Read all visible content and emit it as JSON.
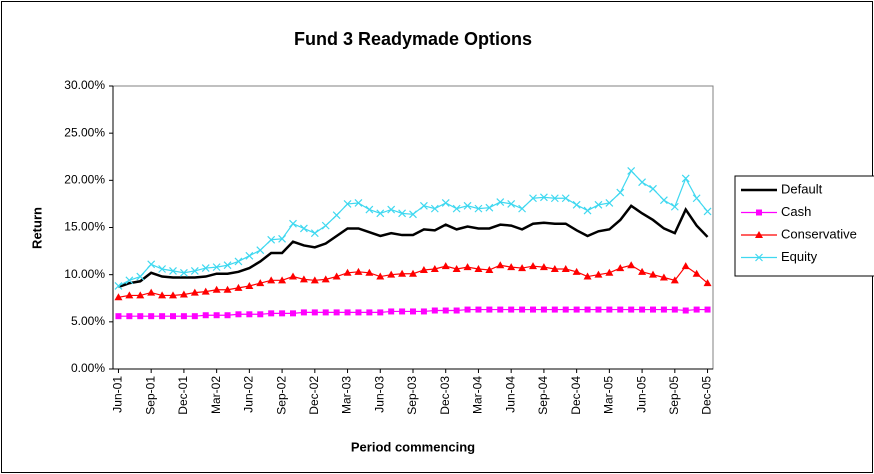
{
  "chart_data": {
    "type": "line",
    "title": "Fund 3 Readymade Options",
    "y_label": "Return",
    "x_label": "Period commencing",
    "categories": [
      "Jun-01",
      null,
      null,
      "Sep-01",
      null,
      null,
      "Dec-01",
      null,
      null,
      "Mar-02",
      null,
      null,
      "Jun-02",
      null,
      null,
      "Sep-02",
      null,
      null,
      "Dec-02",
      null,
      null,
      "Mar-03",
      null,
      null,
      "Jun-03",
      null,
      null,
      "Sep-03",
      null,
      null,
      "Dec-03",
      null,
      null,
      "Mar-04",
      null,
      null,
      "Jun-04",
      null,
      null,
      "Sep-04",
      null,
      null,
      "Dec-04",
      null,
      null,
      "Mar-05",
      null,
      null,
      "Jun-05",
      null,
      null,
      "Sep-05",
      null,
      null,
      "Dec-05"
    ],
    "series": [
      {
        "name": "Default",
        "color": "#000000",
        "marker": "none",
        "values": [
          8.7,
          9.1,
          9.3,
          10.2,
          9.8,
          9.7,
          9.7,
          9.7,
          9.8,
          10.1,
          10.1,
          10.3,
          10.7,
          11.4,
          12.3,
          12.3,
          13.5,
          13.1,
          12.9,
          13.3,
          14.1,
          14.9,
          14.9,
          14.5,
          14.1,
          14.4,
          14.2,
          14.2,
          14.8,
          14.7,
          15.3,
          14.8,
          15.1,
          14.9,
          14.9,
          15.3,
          15.2,
          14.8,
          15.4,
          15.5,
          15.4,
          15.4,
          14.7,
          14.1,
          14.6,
          14.8,
          15.8,
          17.3,
          16.5,
          15.8,
          14.9,
          14.4,
          16.9,
          15.2,
          14.0
        ]
      },
      {
        "name": "Cash",
        "color": "#ff00ff",
        "marker": "square",
        "values": [
          5.6,
          5.6,
          5.6,
          5.6,
          5.6,
          5.6,
          5.6,
          5.6,
          5.7,
          5.7,
          5.7,
          5.8,
          5.8,
          5.8,
          5.9,
          5.9,
          5.9,
          6.0,
          6.0,
          6.0,
          6.0,
          6.0,
          6.0,
          6.0,
          6.0,
          6.1,
          6.1,
          6.1,
          6.1,
          6.2,
          6.2,
          6.2,
          6.3,
          6.3,
          6.3,
          6.3,
          6.3,
          6.3,
          6.3,
          6.3,
          6.3,
          6.3,
          6.3,
          6.3,
          6.3,
          6.3,
          6.3,
          6.3,
          6.3,
          6.3,
          6.3,
          6.3,
          6.2,
          6.3,
          6.3
        ]
      },
      {
        "name": "Conservative",
        "color": "#ff0000",
        "marker": "triangle",
        "values": [
          7.6,
          7.8,
          7.8,
          8.1,
          7.8,
          7.8,
          7.9,
          8.1,
          8.2,
          8.4,
          8.4,
          8.6,
          8.8,
          9.1,
          9.4,
          9.4,
          9.8,
          9.5,
          9.4,
          9.5,
          9.8,
          10.2,
          10.3,
          10.2,
          9.8,
          10.0,
          10.1,
          10.1,
          10.5,
          10.6,
          10.9,
          10.6,
          10.8,
          10.6,
          10.5,
          11.0,
          10.8,
          10.7,
          10.9,
          10.8,
          10.6,
          10.6,
          10.3,
          9.8,
          10.0,
          10.2,
          10.7,
          11.0,
          10.3,
          10.0,
          9.7,
          9.4,
          10.9,
          10.1,
          9.1
        ]
      },
      {
        "name": "Equity",
        "color": "#3fd8f0",
        "marker": "x",
        "values": [
          8.8,
          9.4,
          9.8,
          11.1,
          10.6,
          10.4,
          10.2,
          10.4,
          10.7,
          10.8,
          11.0,
          11.4,
          12.0,
          12.6,
          13.7,
          13.8,
          15.4,
          14.9,
          14.4,
          15.2,
          16.3,
          17.5,
          17.6,
          16.9,
          16.5,
          16.9,
          16.5,
          16.4,
          17.3,
          17.0,
          17.6,
          17.0,
          17.3,
          17.0,
          17.1,
          17.7,
          17.5,
          17.0,
          18.1,
          18.2,
          18.1,
          18.1,
          17.4,
          16.8,
          17.4,
          17.6,
          18.7,
          21.0,
          19.8,
          19.1,
          17.9,
          17.2,
          20.2,
          18.1,
          16.7
        ]
      }
    ],
    "ylim": [
      0,
      30
    ],
    "yticks": [
      {
        "value": 0,
        "label": "0.00%"
      },
      {
        "value": 5,
        "label": "5.00%"
      },
      {
        "value": 10,
        "label": "10.00%"
      },
      {
        "value": 15,
        "label": "15.00%"
      },
      {
        "value": 20,
        "label": "20.00%"
      },
      {
        "value": 25,
        "label": "25.00%"
      },
      {
        "value": 30,
        "label": "30.00%"
      }
    ],
    "grid": false,
    "legend": "right"
  }
}
